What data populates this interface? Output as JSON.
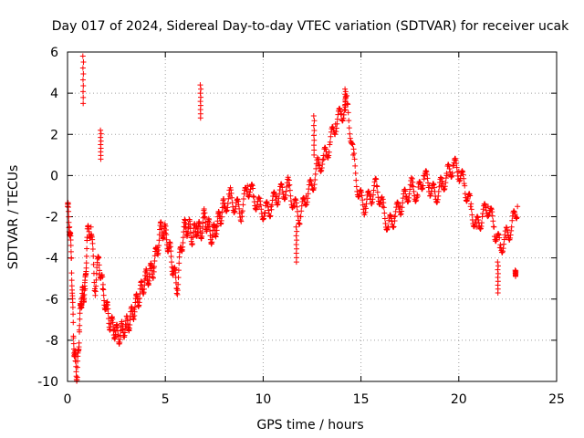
{
  "chart_data": {
    "type": "scatter",
    "title": "Day 017 of 2024, Sidereal Day-to-day VTEC variation (SDTVAR) for receiver ucak",
    "xlabel": "GPS time / hours",
    "ylabel": "SDTVAR / TECUs",
    "xlim": [
      0,
      25
    ],
    "ylim": [
      -10,
      6
    ],
    "xticks": [
      0,
      5,
      10,
      15,
      20,
      25
    ],
    "yticks": [
      -10,
      -8,
      -6,
      -4,
      -2,
      0,
      2,
      4,
      6
    ],
    "grid": true,
    "marker": "+",
    "series": [
      {
        "name": "SDTVAR",
        "color": "#ff0000",
        "x": [
          0.0,
          0.1,
          0.2,
          0.3,
          0.4,
          0.5,
          0.6,
          0.7,
          0.8,
          0.9,
          1.0,
          1.2,
          1.4,
          1.6,
          1.8,
          2.0,
          2.2,
          2.4,
          2.6,
          2.8,
          3.0,
          3.2,
          3.4,
          3.6,
          3.8,
          4.0,
          4.2,
          4.4,
          4.6,
          4.8,
          5.0,
          5.2,
          5.4,
          5.6,
          5.8,
          6.0,
          6.2,
          6.4,
          6.6,
          6.8,
          7.0,
          7.2,
          7.4,
          7.6,
          7.8,
          8.0,
          8.3,
          8.6,
          8.9,
          9.2,
          9.5,
          9.8,
          10.1,
          10.4,
          10.7,
          11.0,
          11.3,
          11.6,
          11.9,
          12.2,
          12.5,
          12.8,
          13.1,
          13.4,
          13.7,
          14.0,
          14.3,
          14.6,
          14.9,
          15.2,
          15.5,
          15.8,
          16.1,
          16.4,
          16.7,
          17.0,
          17.3,
          17.6,
          17.9,
          18.2,
          18.5,
          18.8,
          19.1,
          19.4,
          19.7,
          20.0,
          20.3,
          20.6,
          20.9,
          21.2,
          21.5,
          21.8,
          22.1,
          22.4,
          22.7,
          23.0
        ],
        "y": [
          -1.5,
          -2.5,
          -4.0,
          -7.8,
          -9.0,
          -9.8,
          -7.5,
          -6.0,
          -5.8,
          -5.5,
          -3.0,
          -2.5,
          -5.5,
          -4.0,
          -5.5,
          -6.5,
          -7.2,
          -7.5,
          -7.8,
          -7.5,
          -7.3,
          -7.0,
          -6.5,
          -6.0,
          -5.5,
          -5.0,
          -4.8,
          -4.5,
          -3.5,
          -2.5,
          -2.8,
          -3.5,
          -4.5,
          -5.5,
          -3.5,
          -2.5,
          -2.5,
          -3.0,
          -2.5,
          -2.8,
          -2.0,
          -2.5,
          -3.0,
          -2.5,
          -2.0,
          -1.5,
          -1.0,
          -1.5,
          -1.8,
          -0.5,
          -1.0,
          -1.5,
          -1.8,
          -1.5,
          -1.0,
          -0.8,
          -0.5,
          -1.5,
          -2.0,
          -1.0,
          -0.5,
          0.5,
          0.8,
          1.5,
          2.5,
          3.0,
          3.5,
          1.0,
          -1.0,
          -1.5,
          -1.0,
          -0.5,
          -1.5,
          -2.5,
          -2.0,
          -1.5,
          -1.0,
          -0.5,
          -1.0,
          0.0,
          -0.5,
          -1.0,
          -0.5,
          0.0,
          0.5,
          0.2,
          -0.5,
          -1.5,
          -2.5,
          -2.0,
          -1.5,
          -2.5,
          -3.5,
          -3.0,
          -2.5,
          -1.5
        ]
      }
    ],
    "outlier_bursts": [
      {
        "x": 0.8,
        "y_range": [
          3.5,
          5.8
        ]
      },
      {
        "x": 1.7,
        "y_range": [
          0.8,
          2.2
        ]
      },
      {
        "x": 6.8,
        "y_range": [
          2.8,
          4.4
        ]
      },
      {
        "x": 11.7,
        "y_range": [
          -4.2,
          -2.5
        ]
      },
      {
        "x": 12.6,
        "y_range": [
          1.0,
          2.9
        ]
      },
      {
        "x": 14.2,
        "y_range": [
          3.2,
          4.2
        ]
      },
      {
        "x": 22.0,
        "y_range": [
          -5.7,
          -4.2
        ]
      },
      {
        "x": 22.9,
        "y_range": [
          -4.9,
          -4.6
        ]
      }
    ]
  }
}
